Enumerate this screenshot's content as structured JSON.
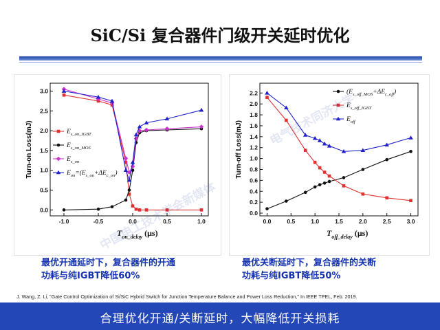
{
  "page": {
    "title": "SiC/Si 复合器件门级开关延时优化",
    "caption_left": [
      "最优开通延时下，复合器件的开通",
      "功耗与纯IGBT降低60%"
    ],
    "caption_right": [
      "最优关断延时下，复合器件的关断",
      "功耗与纯IGBT降低50%"
    ],
    "reference": "J. Wang, Z. Li, \"Gate Control Optimization of Si/SiC Hybrid Switch for Junction Temperature Balance and Power Loss Reduction,\" In IEEE TPEL, Feb. 2019.",
    "footer": "合理优化开通/关断延时，大幅降低开关损耗",
    "watermarks": [
      "中国电工技术学会新媒体",
      "电气技术同济大学"
    ]
  },
  "chart_data": [
    {
      "type": "line",
      "xlabel": {
        "main": "T",
        "sub": "on_delay",
        "unit": " (μs)"
      },
      "ylabel": "Turn-on Loss(mJ)",
      "xlim": [
        -1.2,
        1.1
      ],
      "ylim": [
        -0.15,
        3.2
      ],
      "xticks": [
        -1.0,
        -0.5,
        0.0,
        0.5,
        1.0
      ],
      "xtick_labels": [
        "-1.0",
        "-0.5",
        "0.0",
        "0.5",
        "1.0"
      ],
      "yticks": [
        0.0,
        0.5,
        1.0,
        1.5,
        2.0,
        2.5,
        3.0
      ],
      "ytick_labels": [
        "0.0",
        "0.5",
        "1.0",
        "1.5",
        "2.0",
        "2.5",
        "3.0"
      ],
      "legend_position": "middle-left",
      "series": [
        {
          "name": "E_s_on_IGBT",
          "legend_main": "E",
          "legend_sub": "s_on_IGBT",
          "color": "#e03030",
          "marker": "square",
          "x": [
            -1.0,
            -0.5,
            -0.3,
            -0.1,
            -0.05,
            0.0,
            0.05,
            0.1,
            0.2,
            0.5,
            1.0
          ],
          "y": [
            2.9,
            2.75,
            2.65,
            1.2,
            0.4,
            0.1,
            0.02,
            0.0,
            0.0,
            0.0,
            0.0
          ]
        },
        {
          "name": "E_s_on_MOS",
          "legend_main": "E",
          "legend_sub": "s_on_MOS",
          "color": "#111111",
          "marker": "circle",
          "x": [
            -1.0,
            -0.5,
            -0.3,
            -0.1,
            -0.05,
            0.0,
            0.05,
            0.1,
            0.2,
            0.5,
            1.0
          ],
          "y": [
            0.0,
            0.02,
            0.08,
            0.25,
            0.5,
            1.0,
            1.7,
            1.95,
            2.0,
            2.02,
            2.05
          ]
        },
        {
          "name": "E_s_on",
          "legend_main": "E",
          "legend_sub": "s_on",
          "color": "#cc33cc",
          "marker": "diamond",
          "x": [
            -1.0,
            -0.5,
            -0.3,
            -0.1,
            -0.05,
            0.0,
            0.05,
            0.1,
            0.2,
            0.5,
            1.0
          ],
          "y": [
            3.05,
            2.8,
            2.7,
            1.3,
            0.95,
            1.1,
            1.8,
            2.0,
            2.02,
            2.05,
            2.1
          ]
        },
        {
          "name": "E_on=(E_s_on+ΔE_c_on)",
          "legend_main": "E",
          "legend_sub": "on",
          "legend_rest": "=(E",
          "legend_sub2": "s_on",
          "legend_rest2": "+ΔE",
          "legend_sub3": "c_on",
          "legend_rest3": ")",
          "color": "#2222cc",
          "marker": "triangle",
          "x": [
            -1.0,
            -0.5,
            -0.3,
            -0.1,
            -0.05,
            0.0,
            0.05,
            0.1,
            0.2,
            0.5,
            1.0
          ],
          "y": [
            3.0,
            2.85,
            2.75,
            1.0,
            0.75,
            1.2,
            1.9,
            2.1,
            2.2,
            2.3,
            2.52
          ]
        }
      ]
    },
    {
      "type": "line",
      "xlabel": {
        "main": "T",
        "sub": "off_delay",
        "unit": " (μs)"
      },
      "ylabel": "Turn-off Loss(mJ)",
      "xlim": [
        -0.15,
        3.15
      ],
      "ylim": [
        -0.05,
        2.38
      ],
      "xticks": [
        0.0,
        0.5,
        1.0,
        1.5,
        2.0,
        2.5,
        3.0
      ],
      "xtick_labels": [
        "0.0",
        "0.5",
        "1.0",
        "1.5",
        "2.0",
        "2.5",
        "3.0"
      ],
      "yticks": [
        0.0,
        0.2,
        0.4,
        0.6,
        0.8,
        1.0,
        1.2,
        1.4,
        1.6,
        1.8,
        2.0,
        2.2
      ],
      "ytick_labels": [
        "0.0",
        "0.2",
        "0.4",
        "0.6",
        "0.8",
        "1.0",
        "1.2",
        "1.4",
        "1.6",
        "1.8",
        "2.0",
        "2.2"
      ],
      "legend_position": "top-right",
      "series": [
        {
          "name": "(E_s_off_MOS+ΔE_c_off)",
          "legend_main": "(E",
          "legend_sub": "s_off_MOS",
          "legend_rest": "+ΔE",
          "legend_sub2": "c_off",
          "legend_rest2": ")",
          "color": "#111111",
          "marker": "circle",
          "x": [
            0.0,
            0.4,
            0.8,
            1.0,
            1.1,
            1.2,
            1.3,
            1.6,
            2.0,
            2.5,
            3.0
          ],
          "y": [
            0.08,
            0.22,
            0.38,
            0.48,
            0.52,
            0.55,
            0.58,
            0.65,
            0.8,
            0.98,
            1.13
          ]
        },
        {
          "name": "E_s_off_IGBT",
          "legend_main": "E",
          "legend_sub": "s_off_IGBT",
          "color": "#e03030",
          "marker": "square",
          "x": [
            0.0,
            0.4,
            0.8,
            1.0,
            1.1,
            1.2,
            1.3,
            1.6,
            2.0,
            2.5,
            3.0
          ],
          "y": [
            2.12,
            1.7,
            1.15,
            0.93,
            0.83,
            0.75,
            0.68,
            0.5,
            0.35,
            0.28,
            0.23
          ]
        },
        {
          "name": "E_off",
          "legend_main": "E",
          "legend_sub": "off",
          "color": "#2222cc",
          "marker": "triangle",
          "x": [
            0.0,
            0.4,
            0.8,
            1.0,
            1.1,
            1.2,
            1.3,
            1.6,
            2.0,
            2.5,
            3.0
          ],
          "y": [
            2.2,
            1.93,
            1.43,
            1.37,
            1.33,
            1.27,
            1.23,
            1.13,
            1.15,
            1.25,
            1.38
          ]
        }
      ]
    }
  ]
}
